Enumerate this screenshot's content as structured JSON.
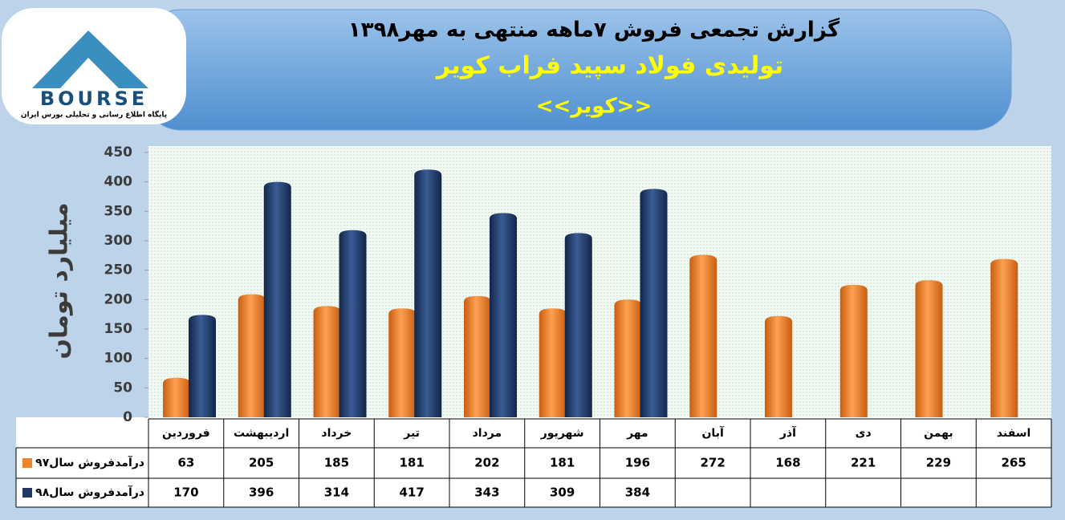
{
  "logo": {
    "name": "BOURSE",
    "tagline": "پایگاه اطلاع رسانی و تحلیلی بورس ایران"
  },
  "chart_data": {
    "type": "bar",
    "title": "گزارش تجمعی فروش ۷ماهه منتهی به مهر۱۳۹۸",
    "subtitle": "تولیدی فولاد سپید فراب کویر",
    "annotation": "<<کویر>>",
    "y_label": "میلیارد تومان",
    "categories": [
      "فروردین",
      "اردیبهشت",
      "خرداد",
      "تیر",
      "مرداد",
      "شهریور",
      "مهر",
      "آبان",
      "آذر",
      "دی",
      "بهمن",
      "اسفند"
    ],
    "series": [
      {
        "name": "درآمدفروش سال۹۷",
        "color": "#f0842c",
        "values": [
          63,
          205,
          185,
          181,
          202,
          181,
          196,
          272,
          168,
          221,
          229,
          265
        ]
      },
      {
        "name": "درآمدفروش سال۹۸",
        "color": "#1f3864",
        "values": [
          170,
          396,
          314,
          417,
          343,
          309,
          384,
          null,
          null,
          null,
          null,
          null
        ]
      }
    ],
    "ylim": [
      0,
      450
    ],
    "yticks": [
      0,
      50,
      100,
      150,
      200,
      250,
      300,
      350,
      400,
      450
    ],
    "grid": false
  }
}
